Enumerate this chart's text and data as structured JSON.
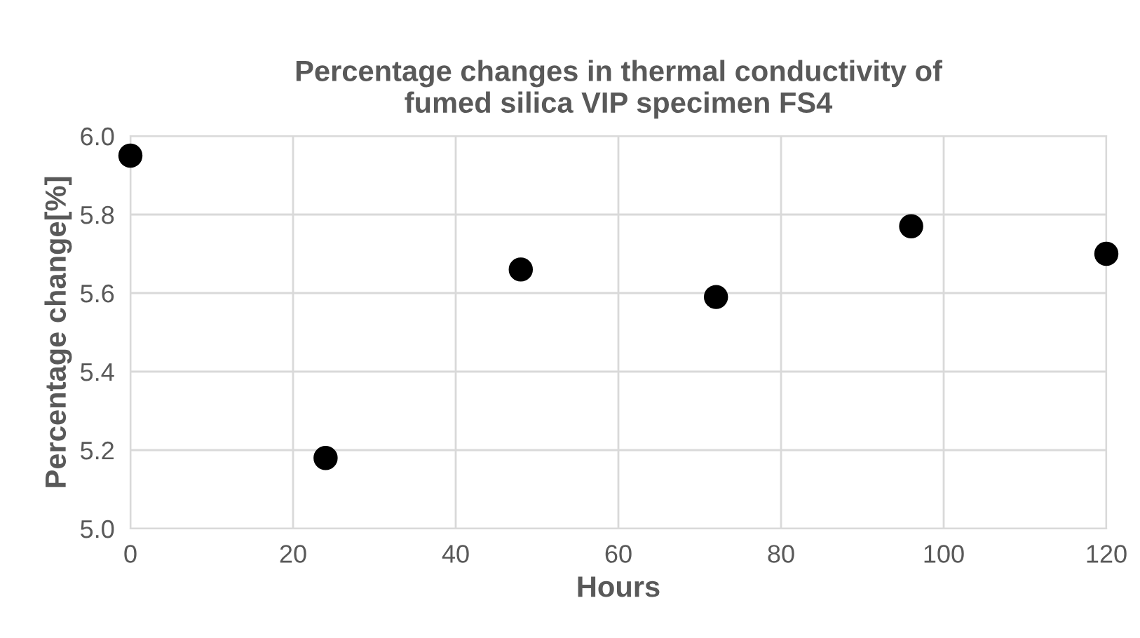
{
  "chart_data": {
    "type": "scatter",
    "title": "Percentage changes in thermal conductivity of\nfumed silica VIP specimen FS4",
    "xlabel": "Hours",
    "ylabel": "Percentage change[%]",
    "x": [
      0,
      24,
      48,
      72,
      96,
      120
    ],
    "series": [
      {
        "color": "#000000",
        "values": [
          5.95,
          5.18,
          5.66,
          5.59,
          5.77,
          5.7
        ]
      }
    ],
    "xlim": [
      0,
      120
    ],
    "xticks": [
      0,
      20,
      40,
      60,
      80,
      100,
      120
    ],
    "ylim": [
      5.0,
      6.0
    ],
    "yticks": [
      {
        "value": 5.0,
        "label": "5.0"
      },
      {
        "value": 5.2,
        "label": "5.2"
      },
      {
        "value": 5.4,
        "label": "5.4"
      },
      {
        "value": 5.6,
        "label": "5.6"
      },
      {
        "value": 5.8,
        "label": "5.8"
      },
      {
        "value": 6.0,
        "label": "6.0"
      }
    ],
    "grid": true,
    "marker": "circle"
  }
}
